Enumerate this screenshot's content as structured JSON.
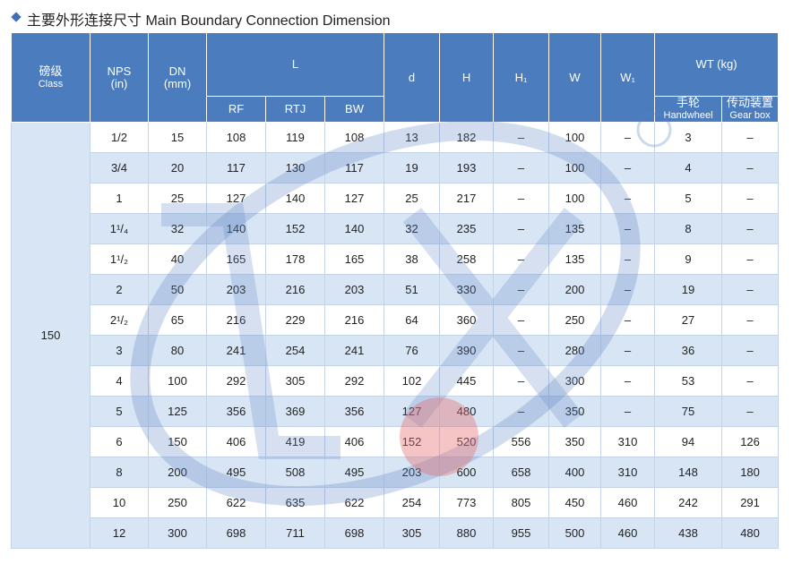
{
  "title": "主要外形连接尺寸 Main Boundary Connection Dimension",
  "table": {
    "header": {
      "class_cn": "磅级",
      "class_en": "Class",
      "nps": "NPS",
      "nps_unit": "(in)",
      "dn": "DN",
      "dn_unit": "(mm)",
      "l": "L",
      "l_sub": [
        "RF",
        "RTJ",
        "BW"
      ],
      "cols": [
        "d",
        "H",
        "H₁",
        "W",
        "W₁"
      ],
      "wt": "WT (kg)",
      "wt_sub": [
        {
          "cn": "手轮",
          "en": "Handwheel"
        },
        {
          "cn": "传动装置",
          "en": "Gear box"
        }
      ]
    },
    "class": "150",
    "rows": [
      [
        "1/2",
        15,
        108,
        119,
        108,
        13,
        182,
        "–",
        100,
        "–",
        3,
        "–"
      ],
      [
        "3/4",
        20,
        117,
        130,
        117,
        19,
        193,
        "–",
        100,
        "–",
        4,
        "–"
      ],
      [
        "1",
        25,
        127,
        140,
        127,
        25,
        217,
        "–",
        100,
        "–",
        5,
        "–"
      ],
      [
        "1¹/₄",
        32,
        140,
        152,
        140,
        32,
        235,
        "–",
        135,
        "–",
        8,
        "–"
      ],
      [
        "1¹/₂",
        40,
        165,
        178,
        165,
        38,
        258,
        "–",
        135,
        "–",
        9,
        "–"
      ],
      [
        "2",
        50,
        203,
        216,
        203,
        51,
        330,
        "–",
        200,
        "–",
        19,
        "–"
      ],
      [
        "2¹/₂",
        65,
        216,
        229,
        216,
        64,
        360,
        "–",
        250,
        "–",
        27,
        "–"
      ],
      [
        "3",
        80,
        241,
        254,
        241,
        76,
        390,
        "–",
        280,
        "–",
        36,
        "–"
      ],
      [
        "4",
        100,
        292,
        305,
        292,
        102,
        445,
        "–",
        300,
        "–",
        53,
        "–"
      ],
      [
        "5",
        125,
        356,
        369,
        356,
        127,
        480,
        "–",
        350,
        "–",
        75,
        "–"
      ],
      [
        "6",
        150,
        406,
        419,
        406,
        152,
        520,
        556,
        350,
        310,
        94,
        126
      ],
      [
        "8",
        200,
        495,
        508,
        495,
        203,
        600,
        658,
        400,
        310,
        148,
        180
      ],
      [
        "10",
        250,
        622,
        635,
        622,
        254,
        773,
        805,
        450,
        460,
        242,
        291
      ],
      [
        "12",
        300,
        698,
        711,
        698,
        305,
        880,
        955,
        500,
        460,
        438,
        480
      ]
    ]
  }
}
